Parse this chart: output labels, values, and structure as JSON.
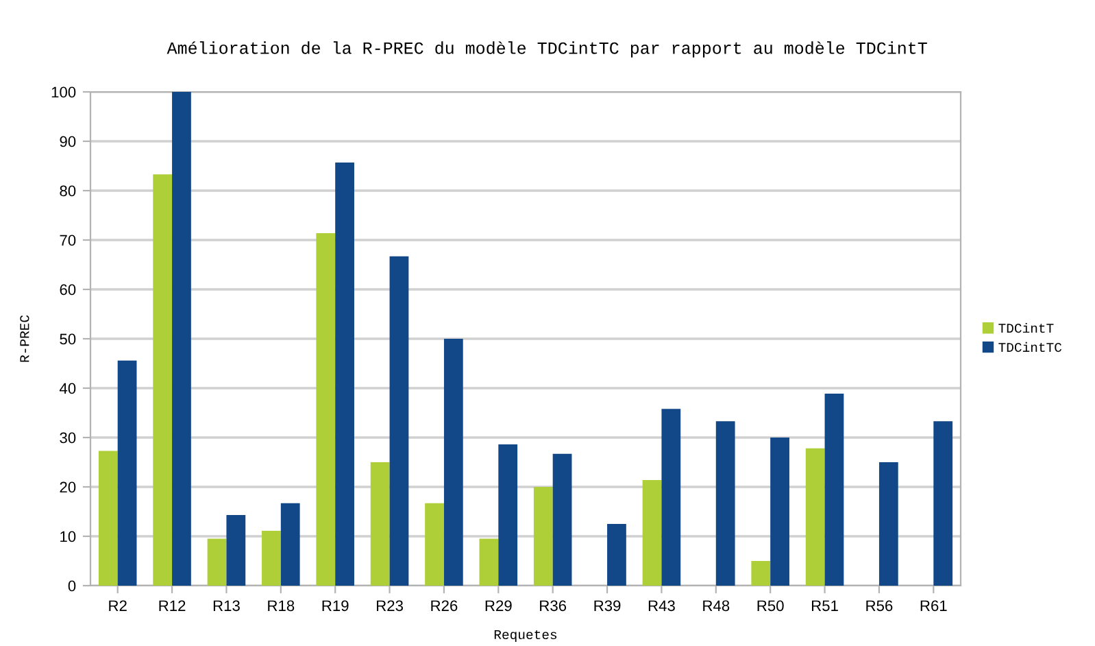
{
  "chart_data": {
    "type": "bar",
    "title": "Amélioration de la R-PREC du modèle TDCintTC par rapport au modèle TDCintT",
    "xlabel": "Requetes",
    "ylabel": "R-PREC",
    "categories": [
      "R2",
      "R12",
      "R13",
      "R18",
      "R19",
      "R23",
      "R26",
      "R29",
      "R36",
      "R39",
      "R43",
      "R48",
      "R50",
      "R51",
      "R56",
      "R61"
    ],
    "series": [
      {
        "name": "TDCintT",
        "color": "#aecf38",
        "values": [
          27.3,
          83.3,
          9.5,
          11.1,
          71.4,
          25,
          16.7,
          9.5,
          20,
          0,
          21.4,
          0,
          5,
          27.8,
          0,
          0
        ]
      },
      {
        "name": "TDCintTC",
        "color": "#124887",
        "values": [
          45.6,
          100,
          14.3,
          16.7,
          85.7,
          66.7,
          50,
          28.6,
          26.7,
          12.5,
          35.8,
          33.3,
          30,
          38.9,
          25,
          33.3
        ]
      }
    ],
    "ylim": [
      0,
      100
    ],
    "yticks": [
      0,
      10,
      20,
      30,
      40,
      50,
      60,
      70,
      80,
      90,
      100
    ],
    "grid": "y",
    "legend": "right"
  }
}
